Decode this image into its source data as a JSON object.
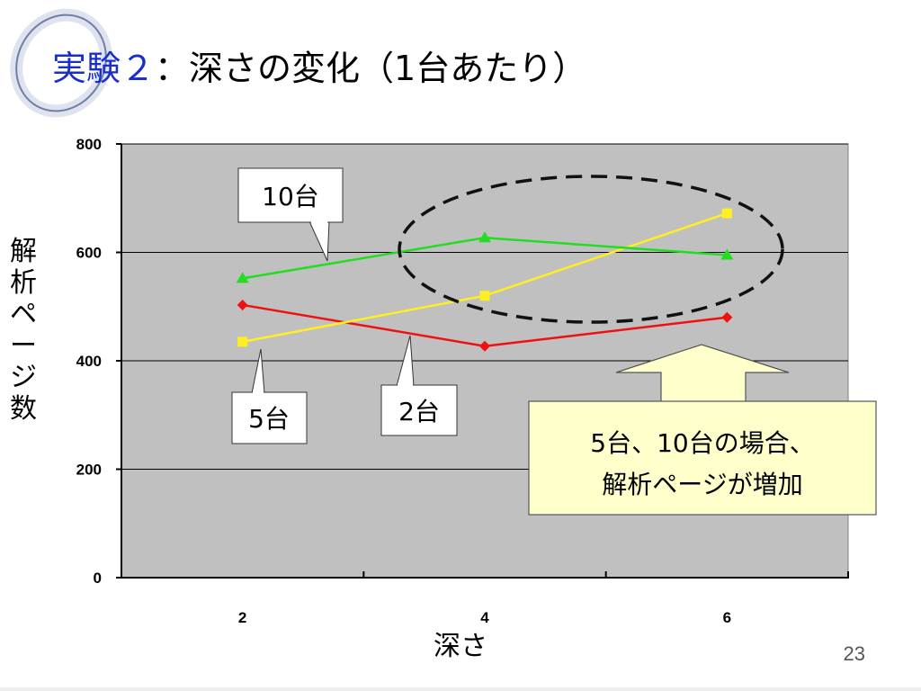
{
  "slide": {
    "title_prefix": "実験２",
    "title_rest": "：深さの変化（1台あたり）",
    "page_number": "23"
  },
  "chart_data": {
    "type": "line",
    "title": "",
    "xlabel": "深さ",
    "ylabel": "解析ページ数",
    "categories": [
      "2",
      "4",
      "6"
    ],
    "ylim": [
      0,
      800
    ],
    "yticks": [
      0,
      200,
      400,
      600,
      800
    ],
    "grid": true,
    "legend": "none",
    "series": [
      {
        "name": "2台",
        "values": [
          503,
          427,
          480
        ],
        "color": "#ee1111",
        "marker": "diamond"
      },
      {
        "name": "5台",
        "values": [
          435,
          520,
          672
        ],
        "color": "#ffee22",
        "marker": "square"
      },
      {
        "name": "10台",
        "values": [
          552,
          627,
          595
        ],
        "color": "#22dd22",
        "marker": "triangle"
      }
    ],
    "callouts": [
      {
        "text": "10台",
        "series": "10台"
      },
      {
        "text": "5台",
        "series": "5台"
      },
      {
        "text": "2台",
        "series": "2台"
      }
    ],
    "annotation": {
      "text_line1": "5台、10台の場合、",
      "text_line2": "解析ページが増加"
    }
  },
  "colors": {
    "plot_background": "#c0c0c0",
    "annotation_fill": "#ffffcc",
    "title_blue": "#1a2fc8"
  }
}
